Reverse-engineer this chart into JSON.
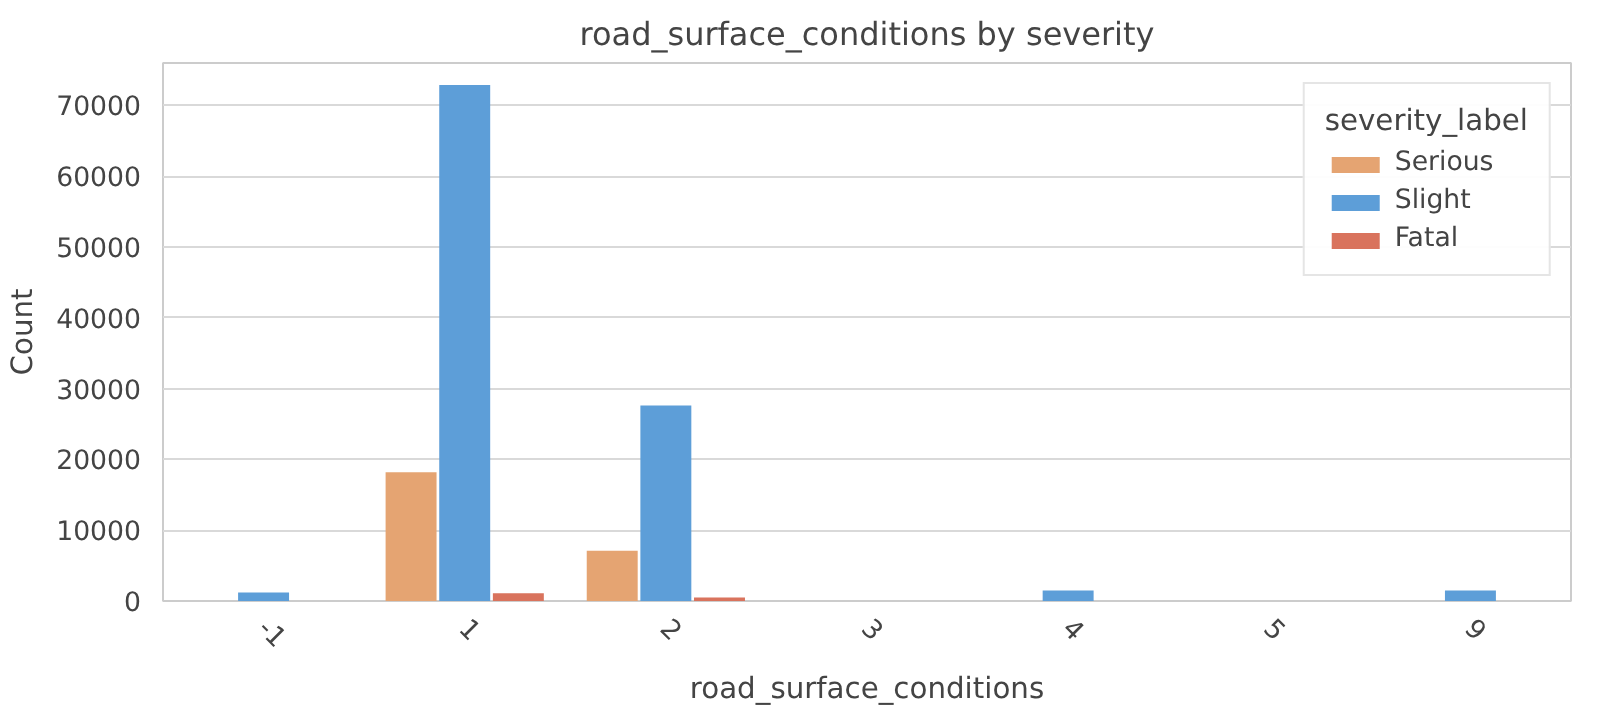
{
  "chart_data": {
    "type": "bar",
    "title": "road_surface_conditions by severity",
    "xlabel": "road_surface_conditions",
    "ylabel": "Count",
    "legend_title": "severity_label",
    "categories": [
      "-1",
      "1",
      "2",
      "3",
      "4",
      "5",
      "9"
    ],
    "series": [
      {
        "name": "Serious",
        "color": "#e5a472",
        "values": [
          0,
          18200,
          7100,
          0,
          0,
          0,
          0
        ]
      },
      {
        "name": "Slight",
        "color": "#5d9ed8",
        "values": [
          1200,
          72900,
          27600,
          0,
          1500,
          0,
          1500
        ]
      },
      {
        "name": "Fatal",
        "color": "#d9735d",
        "values": [
          0,
          1100,
          500,
          0,
          0,
          0,
          0
        ]
      }
    ],
    "ylim": [
      0,
      76000
    ],
    "yticks": [
      0,
      10000,
      20000,
      30000,
      40000,
      50000,
      60000,
      70000
    ],
    "grid": "y",
    "legend": "top right"
  }
}
